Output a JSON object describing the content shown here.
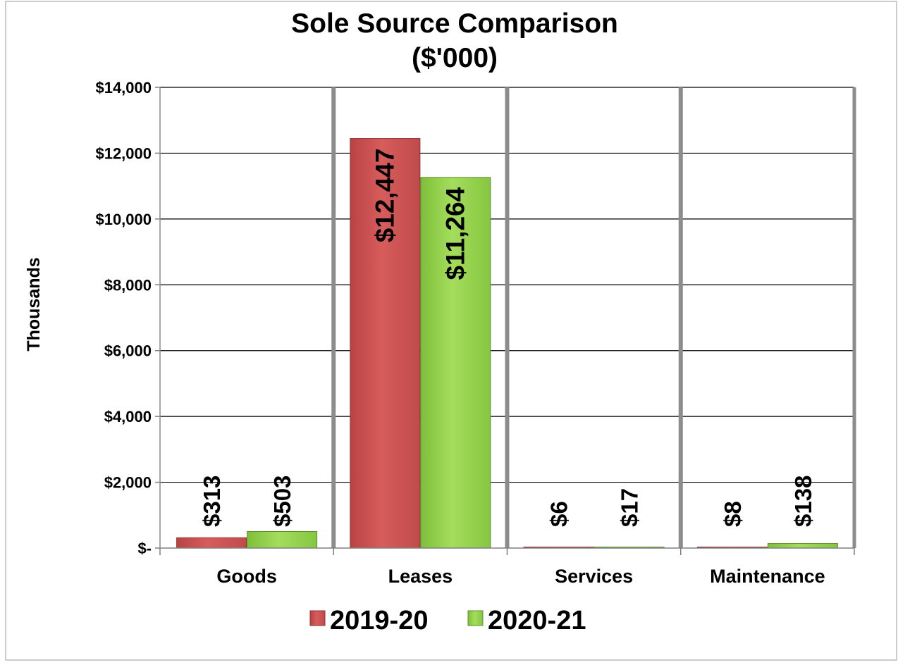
{
  "chart_data": {
    "type": "bar",
    "title": "Sole Source Comparison",
    "subtitle": "($'000)",
    "ylabel": "Thousands",
    "xlabel": "",
    "categories": [
      "Goods",
      "Leases",
      "Services",
      "Maintenance"
    ],
    "series": [
      {
        "name": "2019-20",
        "color": "#cd5454",
        "values": [
          313,
          12447,
          6,
          8
        ],
        "value_labels": [
          "$313",
          "$12,447",
          "$6",
          "$8"
        ]
      },
      {
        "name": "2020-21",
        "color": "#92d050",
        "values": [
          503,
          11264,
          17,
          138
        ],
        "value_labels": [
          "$503",
          "$11,264",
          "$17",
          "$138"
        ]
      }
    ],
    "ylim": [
      0,
      14000
    ],
    "yticks": [
      0,
      2000,
      4000,
      6000,
      8000,
      10000,
      12000,
      14000
    ],
    "ytick_labels": [
      "$-",
      "$2,000",
      "$4,000",
      "$6,000",
      "$8,000",
      "$10,000",
      "$12,000",
      "$14,000"
    ],
    "grid": true,
    "legend_position": "bottom"
  }
}
